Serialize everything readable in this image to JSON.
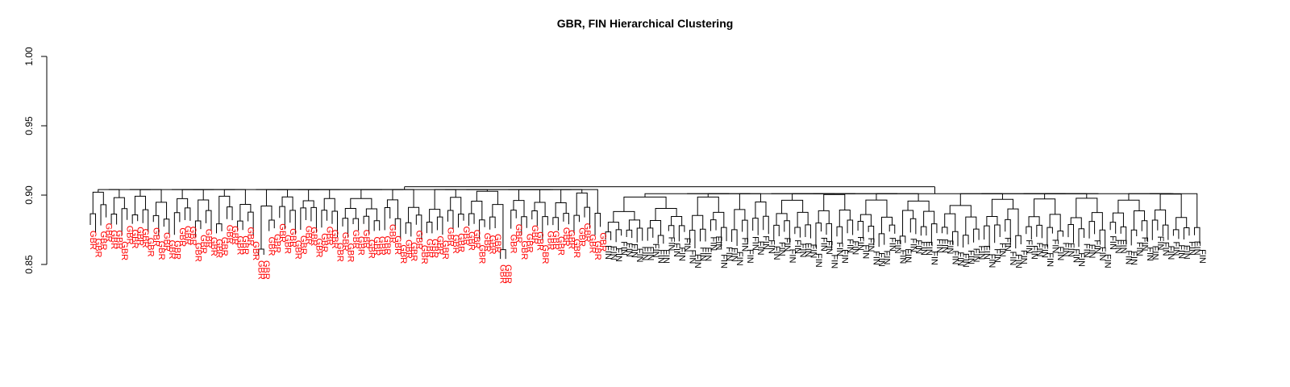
{
  "chart_data": {
    "type": "dendrogram",
    "title": "GBR, FIN Hierarchical Clustering",
    "xlabel": "",
    "ylabel": "",
    "ylim": [
      0.84,
      1.0
    ],
    "yticks": [
      0.85,
      0.9,
      0.95,
      1.0
    ],
    "ytick_labels": [
      "0.85",
      "0.90",
      "0.95",
      "1.00"
    ],
    "grid": false,
    "legend": "none",
    "colors": {
      "GBR": "#ff0000",
      "FIN": "#000000",
      "branch": "#000000"
    },
    "groups": [
      {
        "name": "GBR",
        "label": "GBR",
        "count": 98,
        "cluster_height": 0.905
      },
      {
        "name": "FIN",
        "label": "FIN",
        "count": 114,
        "cluster_height": 0.902
      }
    ],
    "top_merge_height": 0.906,
    "notable_merges": [
      {
        "group": "GBR",
        "label": "GBR",
        "height": 0.857
      },
      {
        "group": "GBR",
        "label": "GBR",
        "height": 0.854
      },
      {
        "group": "FIN",
        "label": "FIN",
        "height": 0.865
      }
    ]
  }
}
